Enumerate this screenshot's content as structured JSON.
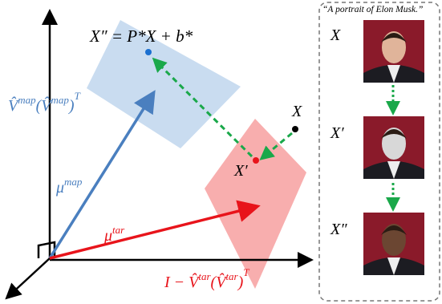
{
  "diagram": {
    "equation": "X″ = P*X + b*",
    "point_x": "X",
    "point_x_prime": "X′",
    "mu_map": {
      "base": "μ",
      "sup": "map"
    },
    "mu_tar": {
      "base": "μ",
      "sup": "tar"
    },
    "proj_map": [
      "V̂",
      "map",
      "(V̂",
      "map",
      ")",
      "T"
    ],
    "proj_tar": [
      "I − V̂",
      "tar",
      "(V̂",
      "tar",
      ")",
      "T"
    ],
    "panel": {
      "caption": "“A portrait of Elon Musk.”",
      "rows": [
        "X",
        "X′",
        "X″"
      ]
    }
  }
}
